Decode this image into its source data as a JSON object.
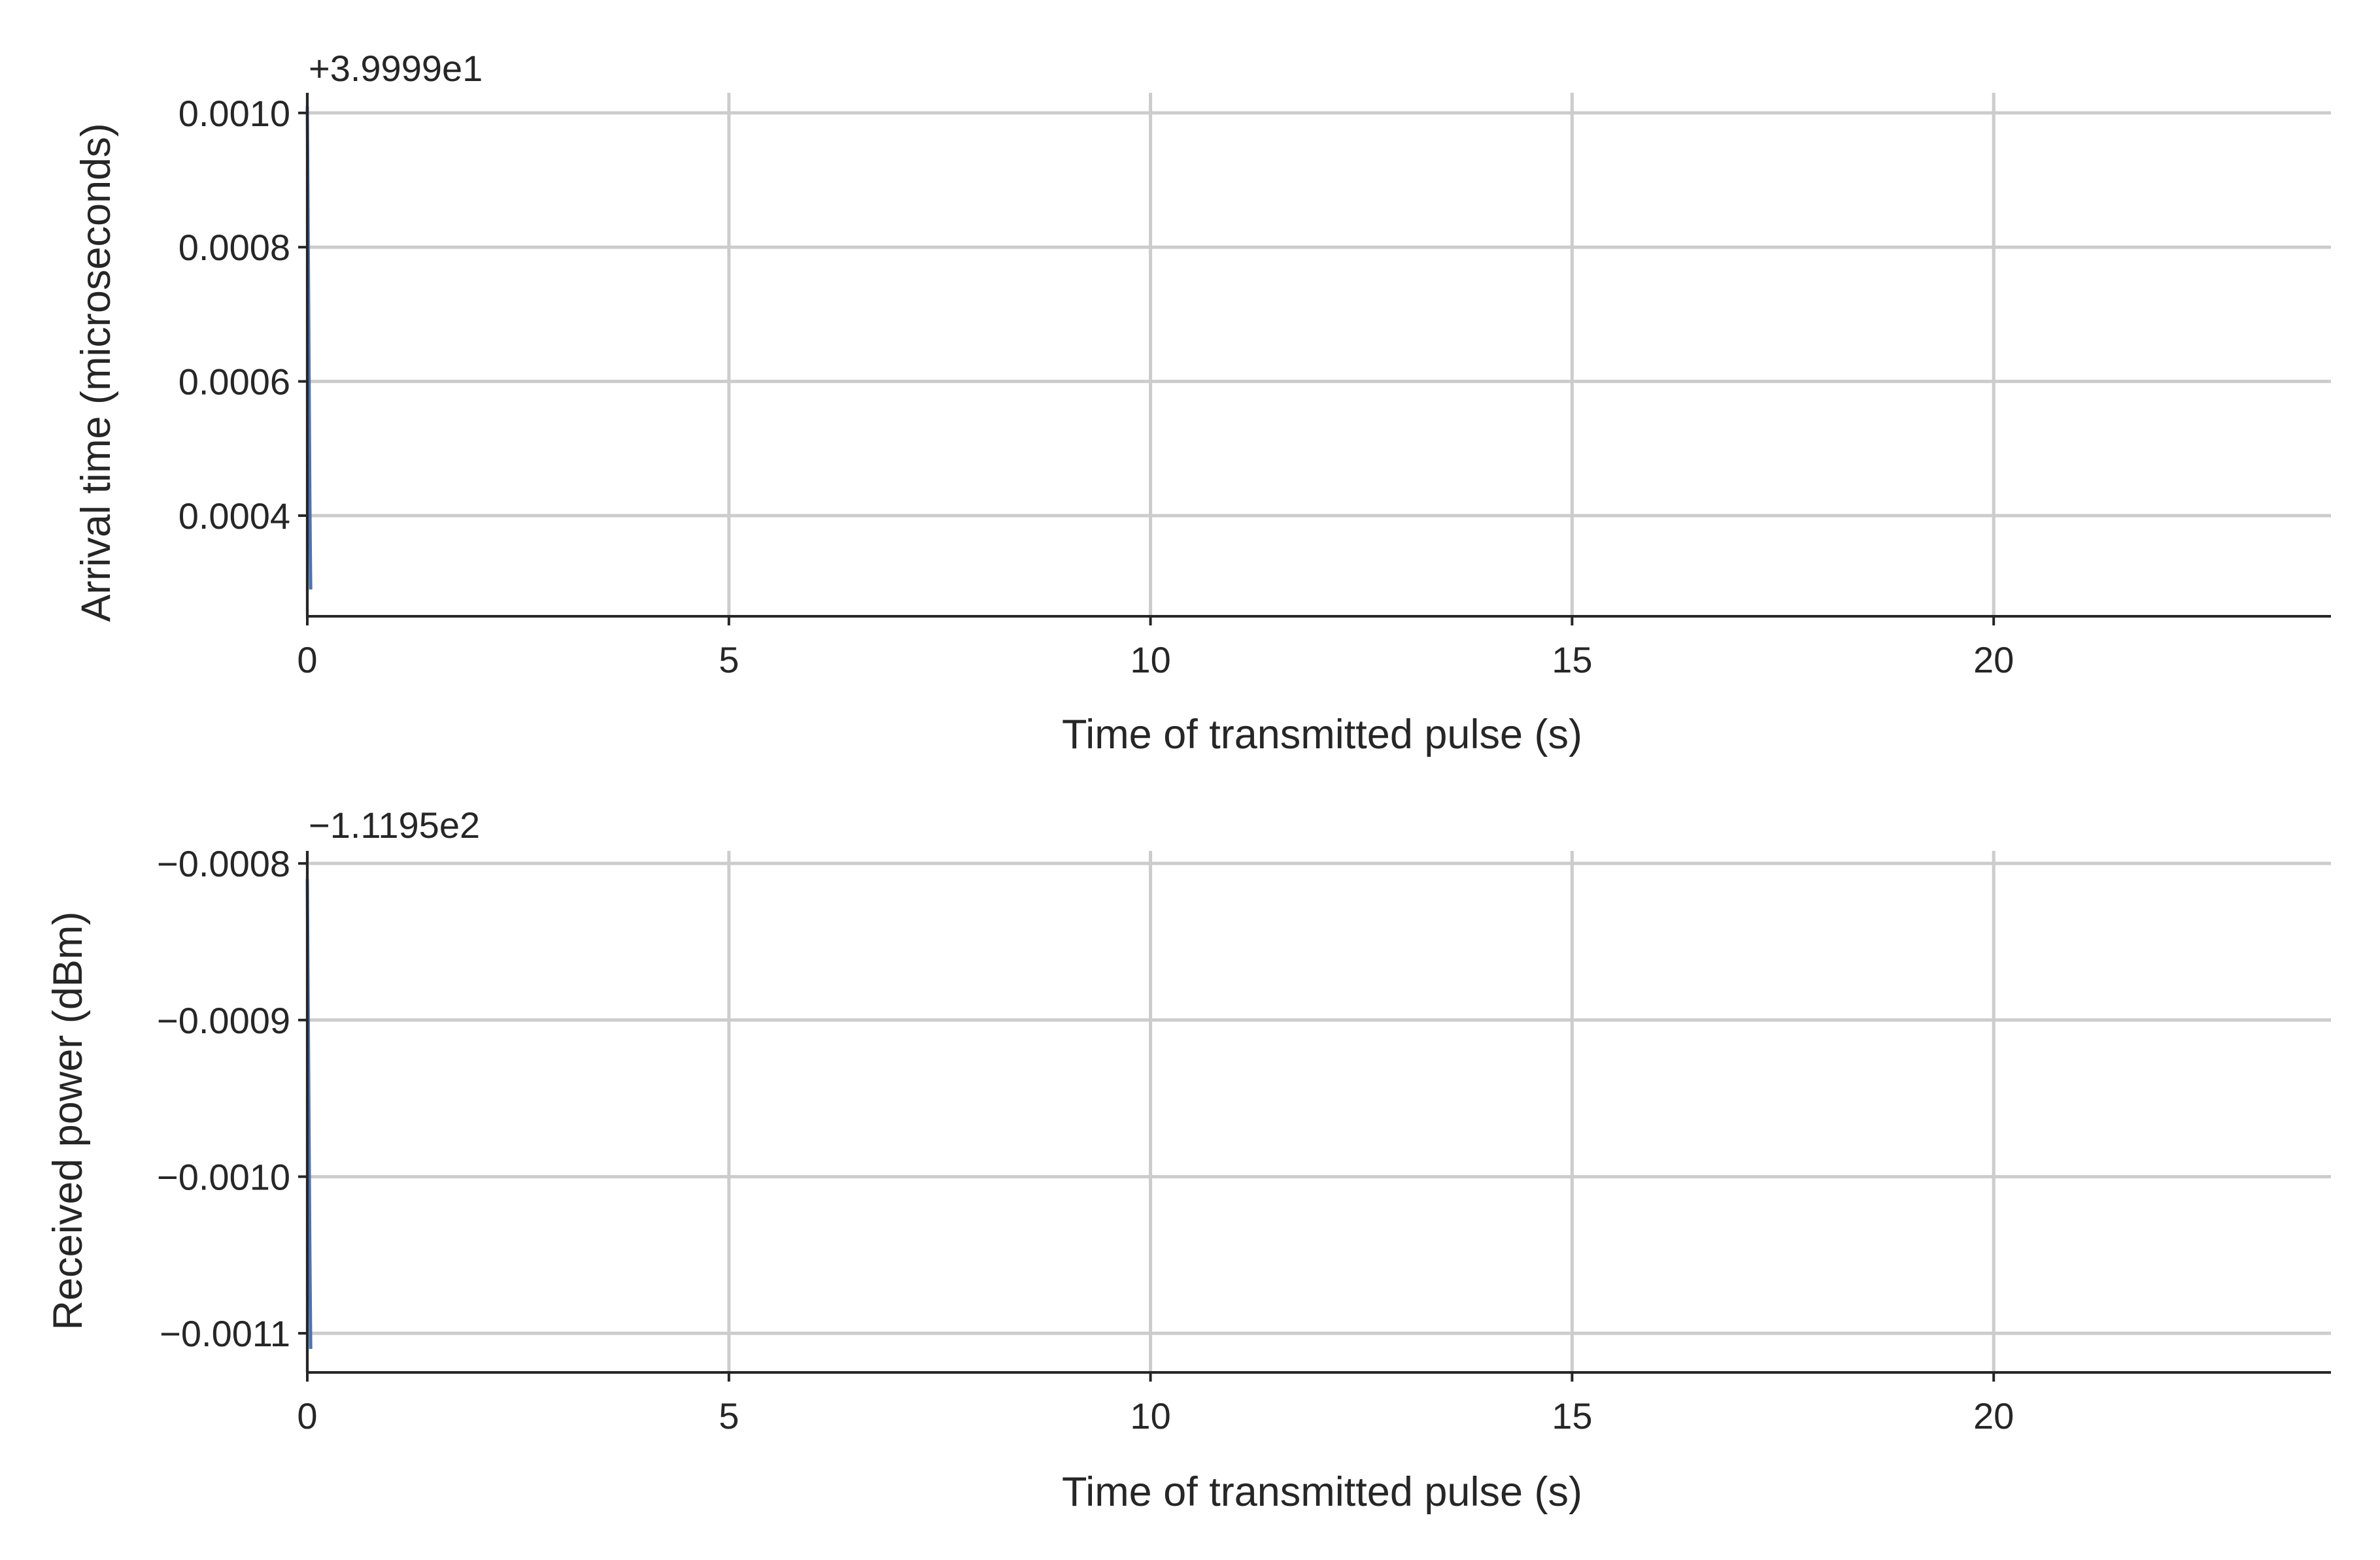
{
  "chart_data": [
    {
      "type": "line",
      "title": "",
      "xlabel": "Time of transmitted pulse  (s)",
      "ylabel": "Arrival time  (microseconds)",
      "offset_text": "+3.9999e1",
      "xlim": [
        0,
        24
      ],
      "ylim": [
        0.00025,
        0.00103
      ],
      "xticks": [
        0,
        5,
        10,
        15,
        20
      ],
      "xtick_labels": [
        "0",
        "5",
        "10",
        "15",
        "20"
      ],
      "yticks": [
        0.0004,
        0.0006,
        0.0008,
        0.001
      ],
      "ytick_labels": [
        "0.0004",
        "0.0006",
        "0.0008",
        "0.0010"
      ],
      "grid": true,
      "series": [
        {
          "color": "#4c72b0",
          "x": [
            0.0,
            0.005,
            0.01,
            0.015,
            0.02,
            0.025,
            0.03,
            0.035,
            0.04
          ],
          "y": [
            0.00101,
            0.00092,
            0.00082,
            0.00072,
            0.00062,
            0.00052,
            0.00042,
            0.00035,
            0.00029
          ]
        }
      ]
    },
    {
      "type": "line",
      "title": "",
      "xlabel": "Time of transmitted pulse  (s)",
      "ylabel": "Received power  (dBm)",
      "offset_text": "−1.1195e2",
      "xlim": [
        0,
        24
      ],
      "ylim": [
        -0.001125,
        -0.000792
      ],
      "xticks": [
        0,
        5,
        10,
        15,
        20
      ],
      "xtick_labels": [
        "0",
        "5",
        "10",
        "15",
        "20"
      ],
      "yticks": [
        -0.0008,
        -0.0009,
        -0.001,
        -0.0011
      ],
      "ytick_labels": [
        "−0.0008",
        "−0.0009",
        "−0.0010",
        "−0.0011"
      ],
      "grid": true,
      "series": [
        {
          "color": "#4c72b0",
          "x": [
            0.0,
            0.005,
            0.01,
            0.015,
            0.02,
            0.025,
            0.03,
            0.035,
            0.04
          ],
          "y": [
            -0.00081,
            -0.00085,
            -0.00089,
            -0.00093,
            -0.00097,
            -0.00101,
            -0.00105,
            -0.00108,
            -0.00111
          ]
        }
      ]
    }
  ]
}
